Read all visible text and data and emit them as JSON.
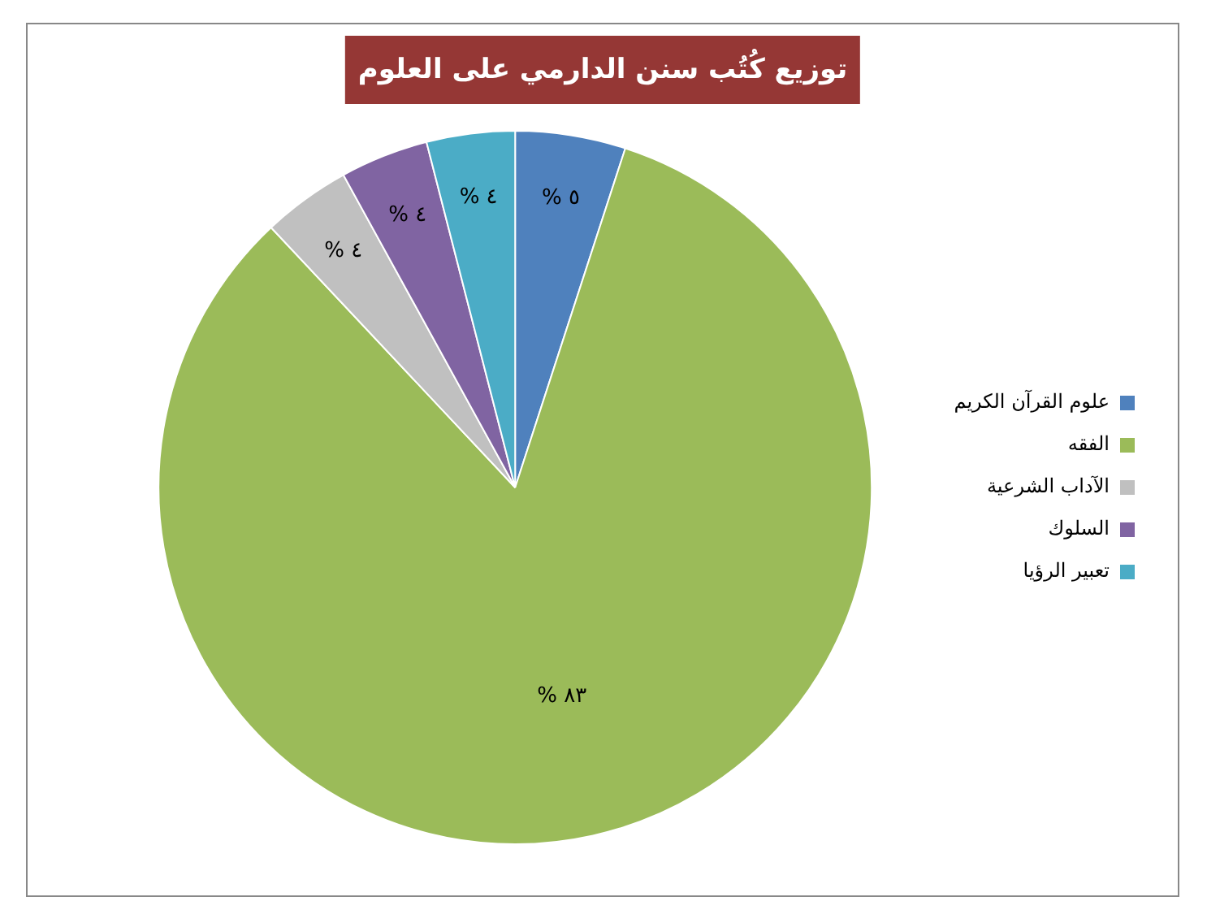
{
  "chart_data": {
    "type": "pie",
    "title": "توزيع كُتُب سنن الدارمي على العلوم",
    "categories": [
      "علوم القرآن الكريم",
      "الفقه",
      "الآداب الشرعية",
      "السلوك",
      "تعبير الرؤيا"
    ],
    "values": [
      5,
      83,
      4,
      4,
      4
    ],
    "colors": [
      "#4f81bd",
      "#9bbb59",
      "#c0c0c0",
      "#8064a2",
      "#4bacc6"
    ],
    "value_labels": [
      "٥ %",
      "٨٣ %",
      "٤ %",
      "٤ %",
      "٤ %"
    ],
    "legend": "right"
  }
}
